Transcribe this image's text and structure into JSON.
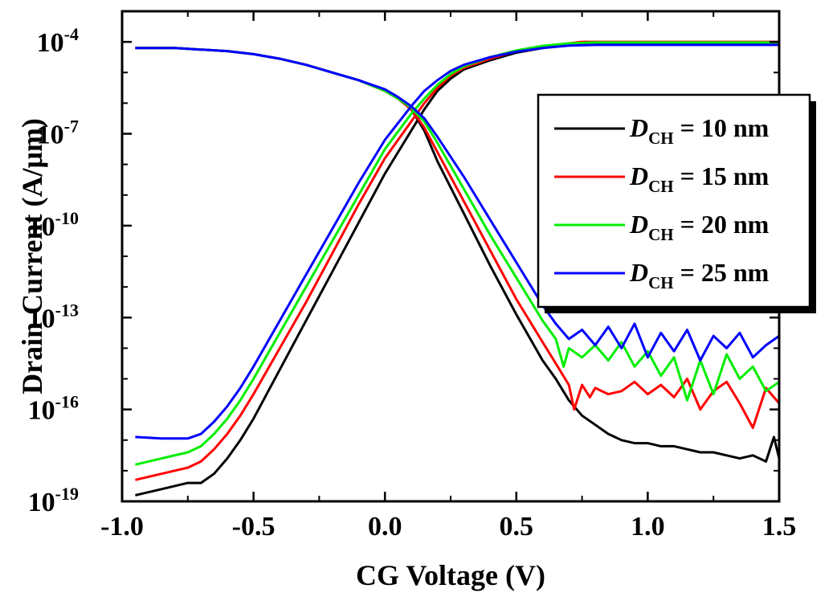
{
  "chart_data": {
    "type": "line",
    "title": "",
    "xlabel": "CG Voltage (V)",
    "ylabel": "Drain Current (A/μm)",
    "yscale": "log",
    "xlim": [
      -1.0,
      1.5
    ],
    "ylim_exponent": [
      -19,
      -3
    ],
    "x_ticks": [
      {
        "value": -1.0,
        "label": "-1.0"
      },
      {
        "value": -0.5,
        "label": "-0.5"
      },
      {
        "value": 0.0,
        "label": "0.0"
      },
      {
        "value": 0.5,
        "label": "0.5"
      },
      {
        "value": 1.0,
        "label": "1.0"
      },
      {
        "value": 1.5,
        "label": "1.5"
      }
    ],
    "y_ticks": [
      {
        "exp": -19,
        "base": "10",
        "sup": "-19"
      },
      {
        "exp": -16,
        "base": "10",
        "sup": "-16"
      },
      {
        "exp": -13,
        "base": "10",
        "sup": "-13"
      },
      {
        "exp": -10,
        "base": "10",
        "sup": "-10"
      },
      {
        "exp": -7,
        "base": "10",
        "sup": "-7"
      },
      {
        "exp": -4,
        "base": "10",
        "sup": "-4"
      }
    ],
    "legend": {
      "position": "top-right"
    },
    "series": [
      {
        "name": "D_CH = 10 nm",
        "label_symbol": "D",
        "label_sub": "CH",
        "label_rest": " = 10 nm",
        "color": "#000000",
        "curves": [
          {
            "x": [
              -0.95,
              -0.85,
              -0.75,
              -0.7,
              -0.65,
              -0.6,
              -0.55,
              -0.5,
              -0.4,
              -0.3,
              -0.2,
              -0.1,
              0.0,
              0.1,
              0.15,
              0.2,
              0.25,
              0.3,
              0.4,
              0.5,
              0.6,
              0.7,
              0.75,
              0.8,
              0.85,
              0.9,
              0.95,
              1.0,
              1.05,
              1.1,
              1.15,
              1.2,
              1.25,
              1.3,
              1.35,
              1.4,
              1.45,
              1.48,
              1.5
            ],
            "logy": [
              -18.8,
              -18.6,
              -18.4,
              -18.4,
              -18.1,
              -17.6,
              -17.0,
              -16.3,
              -14.7,
              -13.1,
              -11.5,
              -9.9,
              -8.3,
              -6.9,
              -6.2,
              -5.6,
              -5.2,
              -4.9,
              -4.6,
              -4.35,
              -4.2,
              -4.1,
              -4.05,
              -4.05,
              -4.05,
              -4.05,
              -4.05,
              -4.05,
              -4.05,
              -4.05,
              -4.05,
              -4.05,
              -4.05,
              -4.05,
              -4.05,
              -4.05,
              -4.05,
              -4.05,
              -4.05
            ]
          },
          {
            "x": [
              -0.95,
              -0.8,
              -0.7,
              -0.6,
              -0.5,
              -0.4,
              -0.3,
              -0.2,
              -0.1,
              0.0,
              0.05,
              0.1,
              0.15,
              0.2,
              0.3,
              0.4,
              0.5,
              0.6,
              0.65,
              0.7,
              0.75,
              0.8,
              0.85,
              0.9,
              0.95,
              1.0,
              1.05,
              1.1,
              1.15,
              1.2,
              1.25,
              1.3,
              1.35,
              1.4,
              1.45,
              1.48,
              1.5
            ],
            "logy": [
              -4.2,
              -4.2,
              -4.25,
              -4.3,
              -4.4,
              -4.55,
              -4.75,
              -5.0,
              -5.25,
              -5.6,
              -5.85,
              -6.2,
              -6.9,
              -7.9,
              -9.6,
              -11.3,
              -12.9,
              -14.4,
              -15.0,
              -15.7,
              -16.2,
              -16.5,
              -16.8,
              -17.0,
              -17.1,
              -17.1,
              -17.2,
              -17.2,
              -17.3,
              -17.4,
              -17.4,
              -17.5,
              -17.6,
              -17.5,
              -17.7,
              -16.9,
              -17.6
            ]
          }
        ]
      },
      {
        "name": "D_CH = 15 nm",
        "label_symbol": "D",
        "label_sub": "CH",
        "label_rest": " = 15 nm",
        "color": "#ff0000",
        "curves": [
          {
            "x": [
              -0.95,
              -0.85,
              -0.75,
              -0.7,
              -0.65,
              -0.6,
              -0.55,
              -0.5,
              -0.4,
              -0.3,
              -0.2,
              -0.1,
              0.0,
              0.1,
              0.15,
              0.2,
              0.25,
              0.3,
              0.4,
              0.5,
              0.6,
              0.7,
              0.75,
              0.8,
              0.9,
              1.0,
              1.1,
              1.2,
              1.3,
              1.4,
              1.5
            ],
            "logy": [
              -18.3,
              -18.1,
              -17.9,
              -17.7,
              -17.3,
              -16.8,
              -16.2,
              -15.5,
              -14.0,
              -12.5,
              -10.9,
              -9.3,
              -7.8,
              -6.6,
              -6.0,
              -5.5,
              -5.1,
              -4.85,
              -4.55,
              -4.3,
              -4.15,
              -4.05,
              -4.0,
              -4.0,
              -4.0,
              -4.0,
              -4.0,
              -4.0,
              -4.0,
              -4.0,
              -4.0
            ]
          },
          {
            "x": [
              -0.95,
              -0.8,
              -0.7,
              -0.6,
              -0.5,
              -0.4,
              -0.3,
              -0.2,
              -0.1,
              0.0,
              0.05,
              0.1,
              0.15,
              0.2,
              0.3,
              0.4,
              0.5,
              0.6,
              0.65,
              0.7,
              0.72,
              0.75,
              0.78,
              0.8,
              0.85,
              0.9,
              0.95,
              1.0,
              1.05,
              1.1,
              1.15,
              1.2,
              1.25,
              1.3,
              1.35,
              1.4,
              1.45,
              1.5
            ],
            "logy": [
              -4.2,
              -4.2,
              -4.25,
              -4.3,
              -4.4,
              -4.55,
              -4.75,
              -5.0,
              -5.25,
              -5.6,
              -5.85,
              -6.2,
              -6.8,
              -7.6,
              -9.2,
              -10.8,
              -12.4,
              -13.8,
              -14.5,
              -15.2,
              -16.0,
              -15.2,
              -15.6,
              -15.3,
              -15.5,
              -15.4,
              -15.1,
              -15.5,
              -15.2,
              -15.6,
              -15.0,
              -16.0,
              -15.4,
              -15.1,
              -15.8,
              -16.6,
              -15.3,
              -15.8
            ]
          }
        ]
      },
      {
        "name": "D_CH = 20 nm",
        "label_symbol": "D",
        "label_sub": "CH",
        "label_rest": " = 20 nm",
        "color": "#00ee00",
        "curves": [
          {
            "x": [
              -0.95,
              -0.85,
              -0.75,
              -0.7,
              -0.65,
              -0.6,
              -0.55,
              -0.5,
              -0.4,
              -0.3,
              -0.2,
              -0.1,
              0.0,
              0.1,
              0.15,
              0.2,
              0.25,
              0.3,
              0.4,
              0.5,
              0.6,
              0.7,
              0.8,
              0.9,
              1.0,
              1.1,
              1.2,
              1.3,
              1.4,
              1.5
            ],
            "logy": [
              -17.8,
              -17.6,
              -17.4,
              -17.2,
              -16.8,
              -16.3,
              -15.7,
              -15.0,
              -13.5,
              -12.0,
              -10.5,
              -9.0,
              -7.5,
              -6.35,
              -5.85,
              -5.4,
              -5.05,
              -4.8,
              -4.5,
              -4.28,
              -4.13,
              -4.05,
              -4.02,
              -4.02,
              -4.02,
              -4.02,
              -4.02,
              -4.02,
              -4.02,
              -4.02
            ]
          },
          {
            "x": [
              -0.95,
              -0.8,
              -0.7,
              -0.6,
              -0.5,
              -0.4,
              -0.3,
              -0.2,
              -0.1,
              0.0,
              0.05,
              0.1,
              0.15,
              0.2,
              0.3,
              0.4,
              0.5,
              0.55,
              0.6,
              0.65,
              0.68,
              0.7,
              0.75,
              0.8,
              0.85,
              0.9,
              0.95,
              1.0,
              1.05,
              1.1,
              1.15,
              1.2,
              1.25,
              1.3,
              1.35,
              1.4,
              1.45,
              1.5
            ],
            "logy": [
              -4.2,
              -4.2,
              -4.25,
              -4.3,
              -4.4,
              -4.55,
              -4.75,
              -5.0,
              -5.25,
              -5.6,
              -5.85,
              -6.15,
              -6.6,
              -7.3,
              -8.8,
              -10.3,
              -11.7,
              -12.4,
              -13.1,
              -13.7,
              -14.6,
              -14.0,
              -14.3,
              -13.9,
              -14.4,
              -13.8,
              -14.6,
              -14.1,
              -14.9,
              -14.3,
              -15.7,
              -14.4,
              -15.5,
              -14.2,
              -15.0,
              -14.6,
              -15.4,
              -15.1
            ]
          }
        ]
      },
      {
        "name": "D_CH = 25 nm",
        "label_symbol": "D",
        "label_sub": "CH",
        "label_rest": " = 25 nm",
        "color": "#0000ff",
        "curves": [
          {
            "x": [
              -0.95,
              -0.85,
              -0.75,
              -0.7,
              -0.65,
              -0.6,
              -0.55,
              -0.5,
              -0.4,
              -0.3,
              -0.2,
              -0.1,
              0.0,
              0.1,
              0.15,
              0.2,
              0.25,
              0.3,
              0.4,
              0.5,
              0.6,
              0.7,
              0.8,
              0.9,
              1.0,
              1.1,
              1.2,
              1.3,
              1.4,
              1.5
            ],
            "logy": [
              -16.9,
              -16.95,
              -16.95,
              -16.8,
              -16.4,
              -15.9,
              -15.3,
              -14.6,
              -13.1,
              -11.6,
              -10.1,
              -8.6,
              -7.2,
              -6.1,
              -5.6,
              -5.25,
              -4.95,
              -4.75,
              -4.5,
              -4.32,
              -4.2,
              -4.12,
              -4.1,
              -4.1,
              -4.1,
              -4.1,
              -4.1,
              -4.1,
              -4.1,
              -4.1
            ]
          },
          {
            "x": [
              -0.95,
              -0.8,
              -0.7,
              -0.6,
              -0.5,
              -0.4,
              -0.3,
              -0.2,
              -0.1,
              0.0,
              0.05,
              0.1,
              0.15,
              0.2,
              0.3,
              0.4,
              0.5,
              0.55,
              0.6,
              0.65,
              0.7,
              0.75,
              0.8,
              0.85,
              0.9,
              0.95,
              1.0,
              1.05,
              1.1,
              1.15,
              1.2,
              1.25,
              1.3,
              1.35,
              1.4,
              1.45,
              1.5
            ],
            "logy": [
              -4.2,
              -4.2,
              -4.25,
              -4.3,
              -4.4,
              -4.55,
              -4.75,
              -5.0,
              -5.25,
              -5.55,
              -5.8,
              -6.1,
              -6.5,
              -7.1,
              -8.4,
              -9.8,
              -11.2,
              -11.9,
              -12.6,
              -13.2,
              -13.7,
              -13.4,
              -13.9,
              -13.3,
              -14.0,
              -13.2,
              -14.3,
              -13.5,
              -14.1,
              -13.4,
              -14.4,
              -13.6,
              -14.0,
              -13.5,
              -14.3,
              -13.9,
              -13.6
            ]
          }
        ]
      }
    ]
  }
}
